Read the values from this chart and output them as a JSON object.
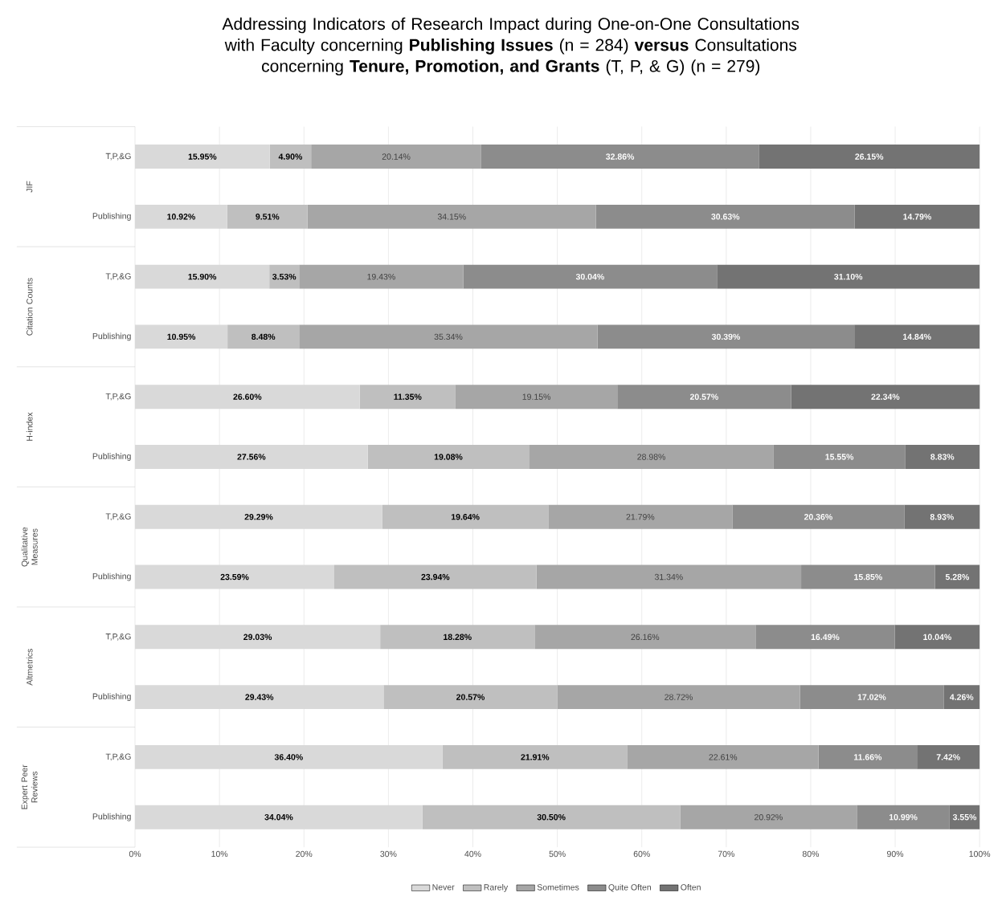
{
  "chart_data": {
    "type": "bar",
    "orientation": "horizontal",
    "stacked": true,
    "title": "Addressing Indicators of Research Impact during One-on-One Consultations with Faculty concerning **Publishing Issues** (n = 284) **versus** Consultations concerning **Tenure, Promotion, and Grants** (T, P, & G) (n = 279)",
    "categories": [
      "T,P,&G",
      "Publishing",
      "T,P,&G",
      "Publishing",
      "T,P,&G",
      "Publishing",
      "T,P,&G",
      "Publishing",
      "T,P,&G",
      "Publishing",
      "T,P,&G",
      "Publishing"
    ],
    "annotations": [
      "JIF",
      "Citation Counts",
      "H-index",
      "Qualitative Measures",
      "Altmetrics",
      "Expert Peer Reviews"
    ],
    "series": [
      {
        "name": "Never",
        "color": "#d9d9d9",
        "values": [
          15.95,
          10.92,
          15.9,
          10.95,
          26.6,
          27.56,
          29.29,
          23.59,
          29.03,
          29.43,
          36.4,
          34.04
        ],
        "value_labels": [
          "15.95%",
          "10.92%",
          "15.90%",
          "10.95%",
          "26.60%",
          "27.56%",
          "29.29%",
          "23.59%",
          "29.03%",
          "29.43%",
          "36.40%",
          "34.04%"
        ]
      },
      {
        "name": "Rarely",
        "color": "#bfbfbf",
        "values": [
          4.9,
          9.51,
          3.53,
          8.48,
          11.35,
          19.08,
          19.64,
          23.94,
          18.28,
          20.57,
          21.91,
          30.5
        ],
        "value_labels": [
          "4.90%",
          "9.51%",
          "3.53%",
          "8.48%",
          "11.35%",
          "19.08%",
          "19.64%",
          "23.94%",
          "18.28%",
          "20.57%",
          "21.91%",
          "30.50%"
        ]
      },
      {
        "name": "Sometimes",
        "color": "#a6a6a6",
        "values": [
          20.14,
          34.15,
          19.43,
          35.34,
          19.15,
          28.98,
          21.79,
          31.34,
          26.16,
          28.72,
          22.61,
          20.92
        ],
        "value_labels": [
          "20.14%",
          "34.15%",
          "19.43%",
          "35.34%",
          "19.15%",
          "28.98%",
          "21.79%",
          "31.34%",
          "26.16%",
          "28.72%",
          "22.61%",
          "20.92%"
        ]
      },
      {
        "name": "Quite Often",
        "color": "#8c8c8c",
        "values": [
          32.86,
          30.63,
          30.04,
          30.39,
          20.57,
          15.55,
          20.36,
          15.85,
          16.49,
          17.02,
          11.66,
          10.99
        ],
        "value_labels": [
          "32.86%",
          "30.63%",
          "30.04%",
          "30.39%",
          "20.57%",
          "15.55%",
          "20.36%",
          "15.85%",
          "16.49%",
          "17.02%",
          "11.66%",
          "10.99%"
        ]
      },
      {
        "name": "Often",
        "color": "#737373",
        "values": [
          26.15,
          14.79,
          31.1,
          14.84,
          22.34,
          8.83,
          8.93,
          5.28,
          10.04,
          4.26,
          7.42,
          3.55
        ],
        "value_labels": [
          "26.15%",
          "14.79%",
          "31.10%",
          "14.84%",
          "22.34%",
          "8.83%",
          "8.93%",
          "5.28%",
          "10.04%",
          "4.26%",
          "7.42%",
          "3.55%"
        ]
      }
    ],
    "xlim": [
      0,
      100
    ],
    "xticks": [
      {
        "value": 0,
        "label": "0%"
      },
      {
        "value": 10,
        "label": "10%"
      },
      {
        "value": 20,
        "label": "20%"
      },
      {
        "value": 30,
        "label": "30%"
      },
      {
        "value": 40,
        "label": "40%"
      },
      {
        "value": 50,
        "label": "50%"
      },
      {
        "value": 60,
        "label": "60%"
      },
      {
        "value": 70,
        "label": "70%"
      },
      {
        "value": 80,
        "label": "80%"
      },
      {
        "value": 90,
        "label": "90%"
      },
      {
        "value": 100,
        "label": "100%"
      }
    ],
    "grid": "x",
    "legend": "bottom"
  }
}
